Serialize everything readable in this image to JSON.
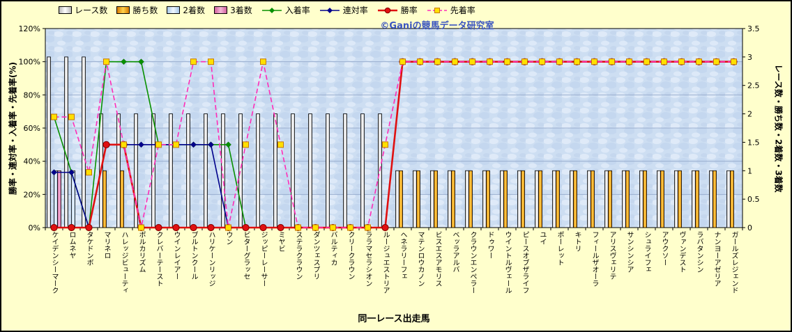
{
  "watermark": "©Ganiの競馬データ研究室",
  "axes": {
    "left": {
      "title": "勝率・連対率・入着率・先着率(%)",
      "ticks": [
        "0%",
        "20%",
        "40%",
        "60%",
        "80%",
        "100%",
        "120%"
      ]
    },
    "right": {
      "title": "レース数・勝ち数・2着数・3着数",
      "ticks": [
        "0",
        "0.5",
        "1",
        "1.5",
        "2",
        "2.5",
        "3",
        "3.5"
      ]
    },
    "x": {
      "title": "同一レース出走馬"
    }
  },
  "legend": {
    "items": [
      {
        "label": "レース数",
        "swatch": "bar",
        "key": "races"
      },
      {
        "label": "勝ち数",
        "swatch": "bar",
        "key": "wins"
      },
      {
        "label": "2着数",
        "swatch": "bar",
        "key": "seconds"
      },
      {
        "label": "3着数",
        "swatch": "bar",
        "key": "thirds"
      },
      {
        "label": "入着率",
        "swatch": "line",
        "key": "nyuchaku"
      },
      {
        "label": "連対率",
        "swatch": "line",
        "key": "rentai"
      },
      {
        "label": "勝率",
        "swatch": "line",
        "key": "shoritsu"
      },
      {
        "label": "先着率",
        "swatch": "line",
        "key": "senchaku"
      }
    ]
  },
  "colors": {
    "background": "#ffffcc",
    "plot_fill": "#cddef2",
    "plot_fill_light": "#e7f0fb",
    "plot_fill_dark": "#b3c8e6",
    "grid": "#9aaecf",
    "axis": "#000000",
    "watermark": "#3a55c0",
    "races_edge": "#b8b8b8",
    "races_fill": "#ffffff",
    "wins_edge": "#d97b00",
    "wins_fill": "#ffd24d",
    "seconds_edge": "#a8c8e8",
    "seconds_fill": "#f0f8ff",
    "thirds_edge": "#d2609e",
    "thirds_fill": "#f5b8d8"
  },
  "chart_data": {
    "type": "bar+line combo",
    "title": "",
    "xlabel": "同一レース出走馬",
    "ylabel_left": "勝率・連対率・入着率・先着率(%)",
    "ylabel_right": "レース数・勝ち数・2着数・3着数",
    "ylim_left": [
      0,
      120
    ],
    "ylim_right": [
      0,
      3.5
    ],
    "grid": true,
    "legend_position": "top",
    "categories": [
      "ケイデンシーマーク",
      "ロムネヤ",
      "タケドンボ",
      "マリネロ",
      "ハレッジビューティ",
      "ポルカリズム",
      "クレバーテースト",
      "ウインレイアー",
      "ブルトンクール",
      "ハリケーンリッジ",
      "ウン",
      "ビターグラッセ",
      "ジッピーレーサー",
      "ミヤビ",
      "ステラクラウン",
      "ダンツェスプリ",
      "バルティカ",
      "クリークラウン",
      "ララマセラシオン",
      "ルージュエストリア",
      "ヘネラリーフェ",
      "マテンロウカノン",
      "ビスエスアモリス",
      "ベッラアルバ",
      "クラウンエンペラー",
      "ドゥワー",
      "ウイントルヴェール",
      "ピースオブザライフ",
      "ユイ",
      "ポーレット",
      "キトリ",
      "フィールザオーラ",
      "アリスヴェリテ",
      "サンシンシア",
      "シュライフェ",
      "アウクソー",
      "ヴァンデスト",
      "ラバタンシン",
      "ナンヨーアゼリア",
      "ガールズレジェンド"
    ],
    "bar_series": [
      {
        "name": "レース数",
        "key": "races",
        "axis": "right",
        "values": [
          3,
          3,
          3,
          2,
          2,
          2,
          2,
          2,
          2,
          2,
          2,
          2,
          2,
          2,
          2,
          2,
          2,
          2,
          2,
          2,
          1,
          1,
          1,
          1,
          1,
          1,
          1,
          1,
          1,
          1,
          1,
          1,
          1,
          1,
          1,
          1,
          1,
          1,
          1,
          1
        ]
      },
      {
        "name": "勝ち数",
        "key": "wins",
        "axis": "right",
        "values": [
          0,
          0,
          0,
          1,
          1,
          0,
          0,
          0,
          0,
          0,
          0,
          0,
          0,
          0,
          0,
          0,
          0,
          0,
          0,
          0,
          1,
          1,
          1,
          1,
          1,
          1,
          1,
          1,
          1,
          1,
          1,
          1,
          1,
          1,
          1,
          1,
          1,
          1,
          1,
          1
        ]
      },
      {
        "name": "2着数",
        "key": "seconds",
        "axis": "right",
        "values": [
          1,
          1,
          0,
          0,
          0,
          0,
          0,
          0,
          0,
          0,
          0,
          0,
          0,
          0,
          0,
          0,
          0,
          0,
          0,
          0,
          0,
          0,
          0,
          0,
          0,
          0,
          0,
          0,
          0,
          0,
          0,
          0,
          0,
          0,
          0,
          0,
          0,
          0,
          0,
          0
        ]
      },
      {
        "name": "3着数",
        "key": "thirds",
        "axis": "right",
        "values": [
          1,
          0,
          0,
          0,
          0,
          0,
          0,
          0,
          0,
          0,
          0,
          0,
          0,
          0,
          0,
          0,
          0,
          0,
          0,
          0,
          0,
          0,
          0,
          0,
          0,
          0,
          0,
          0,
          0,
          0,
          0,
          0,
          0,
          0,
          0,
          0,
          0,
          0,
          0,
          0
        ]
      }
    ],
    "line_series": [
      {
        "name": "入着率",
        "key": "nyuchaku",
        "axis": "left",
        "color": "#089000",
        "width": 1.6,
        "marker": "diamond",
        "values": [
          66.7,
          33.3,
          0,
          100,
          100,
          100,
          50,
          50,
          50,
          50,
          50,
          0,
          0,
          0,
          0,
          0,
          0,
          0,
          0,
          0,
          100,
          100,
          100,
          100,
          100,
          100,
          100,
          100,
          100,
          100,
          100,
          100,
          100,
          100,
          100,
          100,
          100,
          100,
          100,
          100
        ]
      },
      {
        "name": "連対率",
        "key": "rentai",
        "axis": "left",
        "color": "#00008b",
        "width": 1.6,
        "marker": "diamond",
        "values": [
          33.3,
          33.3,
          0,
          50,
          50,
          50,
          50,
          50,
          50,
          50,
          0,
          0,
          0,
          0,
          0,
          0,
          0,
          0,
          0,
          0,
          100,
          100,
          100,
          100,
          100,
          100,
          100,
          100,
          100,
          100,
          100,
          100,
          100,
          100,
          100,
          100,
          100,
          100,
          100,
          100
        ]
      },
      {
        "name": "勝率",
        "key": "shoritsu",
        "axis": "left",
        "color": "#e01010",
        "width": 2.6,
        "marker": "circle",
        "marker_edge": "#7f0000",
        "values": [
          0,
          0,
          0,
          50,
          50,
          0,
          0,
          0,
          0,
          0,
          0,
          0,
          0,
          0,
          0,
          0,
          0,
          0,
          0,
          0,
          100,
          100,
          100,
          100,
          100,
          100,
          100,
          100,
          100,
          100,
          100,
          100,
          100,
          100,
          100,
          100,
          100,
          100,
          100,
          100
        ]
      },
      {
        "name": "先着率",
        "key": "senchaku",
        "axis": "left",
        "color": "#ff2db8",
        "width": 1.6,
        "dash": "7 4",
        "marker": "square",
        "marker_fill": "#ffe000",
        "marker_edge": "#c87800",
        "values": [
          66.7,
          66.7,
          33.3,
          100,
          50,
          0,
          50,
          50,
          100,
          100,
          0,
          50,
          100,
          50,
          0,
          0,
          0,
          0,
          0,
          50,
          100,
          100,
          100,
          100,
          100,
          100,
          100,
          100,
          100,
          100,
          100,
          100,
          100,
          100,
          100,
          100,
          100,
          100,
          100,
          100
        ]
      }
    ]
  }
}
